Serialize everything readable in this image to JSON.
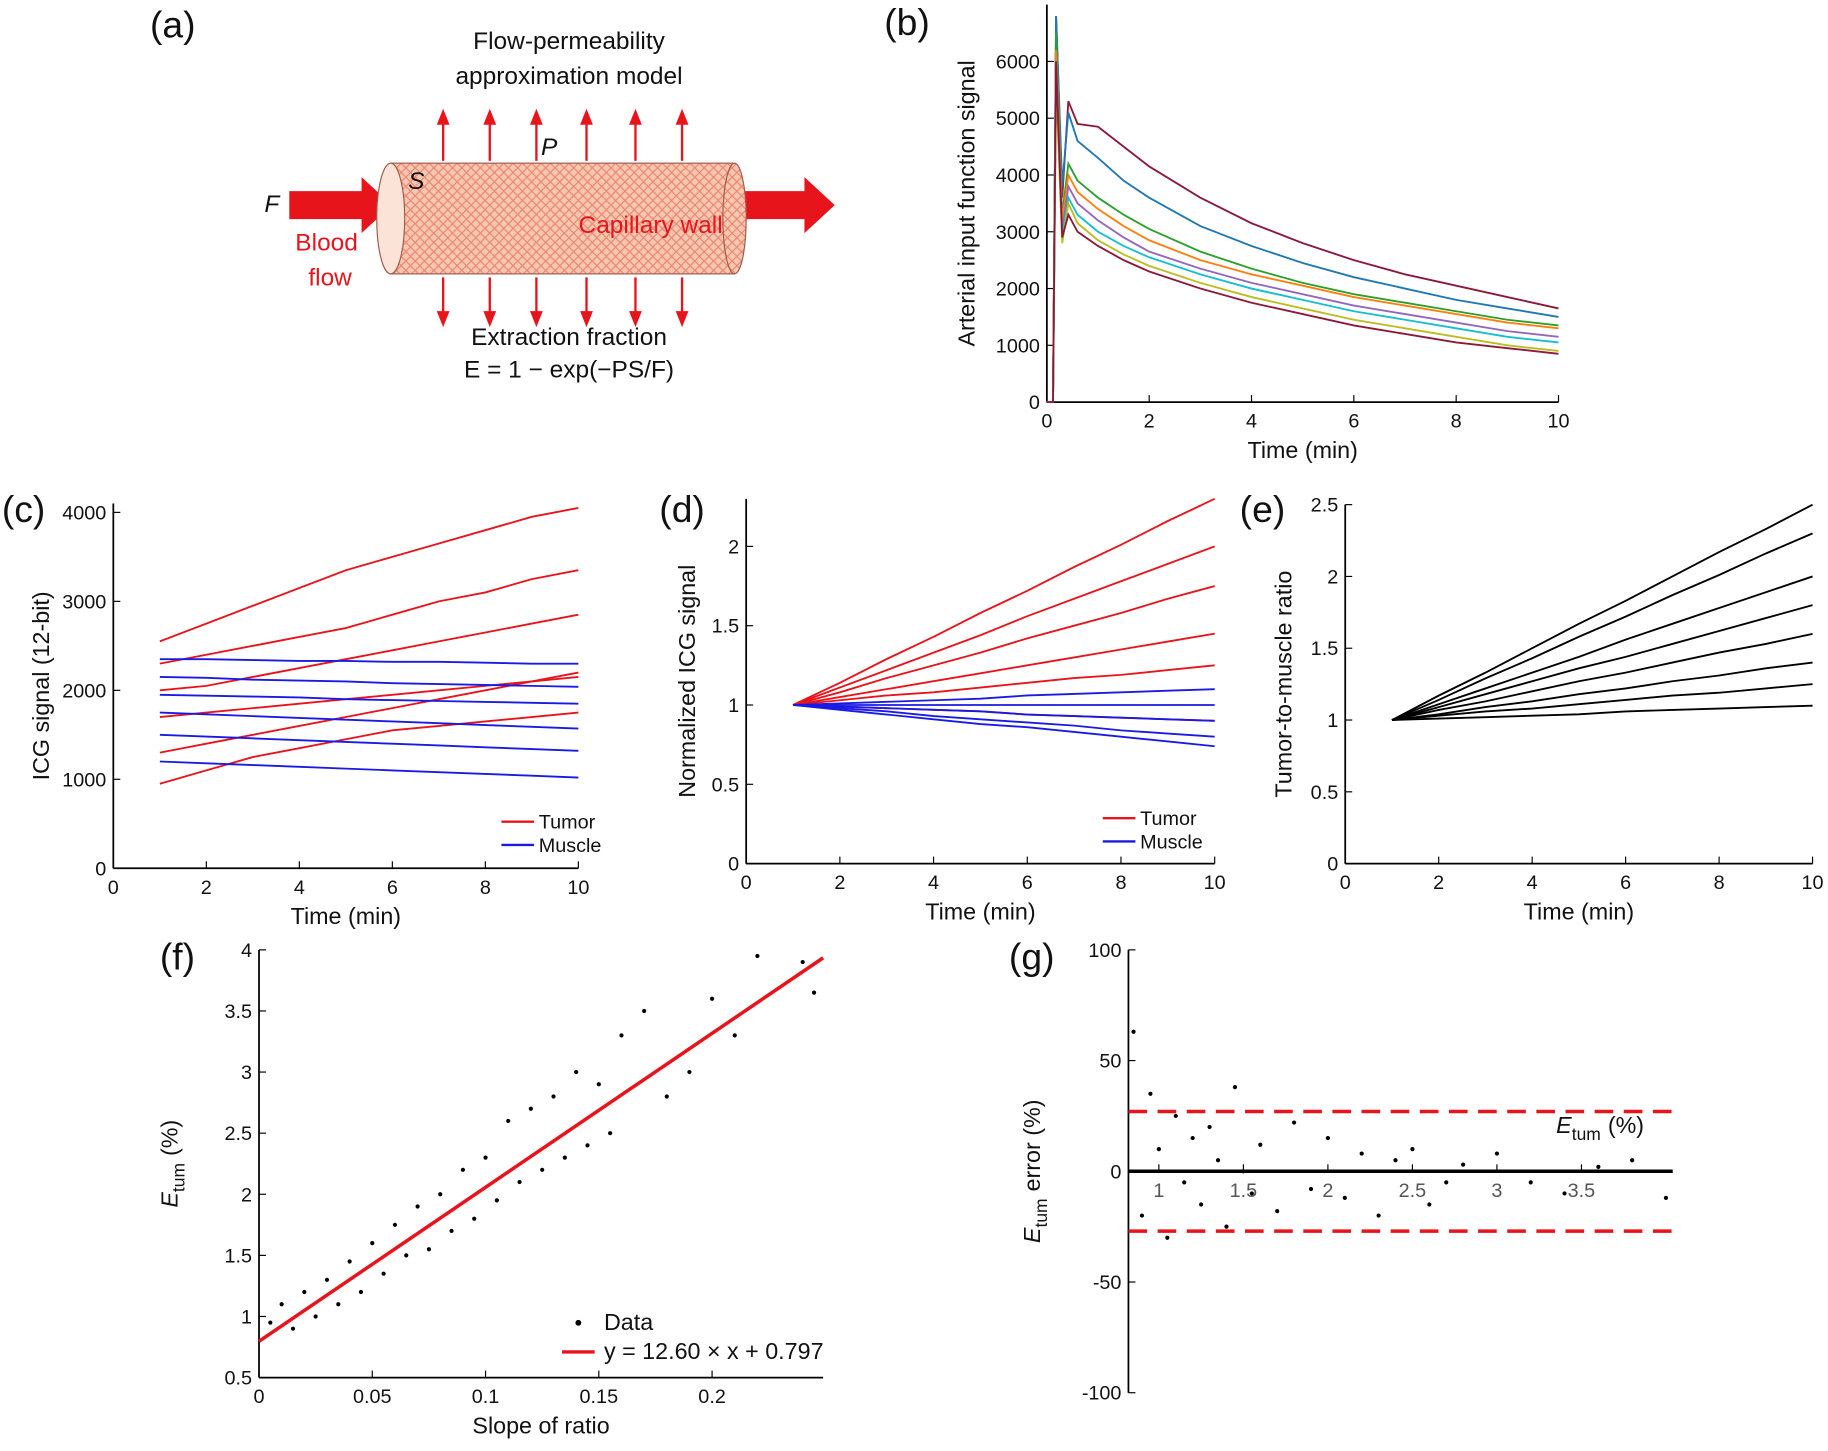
{
  "diagram": {
    "panel": "(a)",
    "title": [
      "Flow-permeability",
      "approximation model"
    ],
    "flow_symbol": "F",
    "surface_symbol": "S",
    "permeability_symbol": "P",
    "blood_flow": [
      "Blood",
      "flow"
    ],
    "wall": "Capillary wall",
    "caption": "Extraction fraction",
    "formula": "E = 1 − exp(−PS/F)"
  },
  "chart_data": [
    {
      "type": "line",
      "panel": "(b)",
      "xlabel": "Time (min)",
      "ylabel": "Arterial input function signal",
      "xlim": [
        0,
        10
      ],
      "xticks": [
        0,
        2,
        4,
        6,
        8,
        10
      ],
      "ylim": [
        0,
        7000
      ],
      "yticks": [
        0,
        1000,
        2000,
        3000,
        4000,
        5000,
        6000
      ],
      "x": [
        0,
        0.12,
        0.18,
        0.3,
        0.42,
        0.6,
        1,
        1.5,
        2,
        3,
        4,
        5,
        6,
        7,
        8,
        9,
        10
      ],
      "series": [
        {
          "color": "#8b1a3a",
          "values": [
            0,
            0,
            6800,
            3600,
            5300,
            4900,
            4850,
            4500,
            4150,
            3600,
            3150,
            2800,
            2500,
            2250,
            2050,
            1850,
            1650
          ]
        },
        {
          "color": "#1f77b4",
          "values": [
            0,
            0,
            6800,
            3800,
            5100,
            4600,
            4300,
            3900,
            3600,
            3100,
            2750,
            2450,
            2200,
            2000,
            1800,
            1650,
            1500
          ]
        },
        {
          "color": "#2ca02c",
          "values": [
            0,
            0,
            6500,
            3300,
            4200,
            3900,
            3600,
            3300,
            3050,
            2650,
            2350,
            2100,
            1900,
            1750,
            1600,
            1450,
            1350
          ]
        },
        {
          "color": "#ff7f0e",
          "values": [
            0,
            0,
            6200,
            3200,
            4000,
            3700,
            3400,
            3100,
            2850,
            2500,
            2250,
            2050,
            1850,
            1700,
            1550,
            1400,
            1300
          ]
        },
        {
          "color": "#9467bd",
          "values": [
            0,
            0,
            6000,
            3000,
            3800,
            3500,
            3200,
            2900,
            2650,
            2350,
            2100,
            1900,
            1700,
            1550,
            1400,
            1250,
            1150
          ]
        },
        {
          "color": "#17becf",
          "values": [
            0,
            0,
            5800,
            2900,
            3600,
            3300,
            3000,
            2750,
            2550,
            2250,
            2000,
            1800,
            1600,
            1450,
            1300,
            1150,
            1050
          ]
        },
        {
          "color": "#bcbd22",
          "values": [
            0,
            0,
            5600,
            2800,
            3500,
            3150,
            2850,
            2600,
            2400,
            2100,
            1850,
            1650,
            1450,
            1300,
            1150,
            1000,
            900
          ]
        },
        {
          "color": "#8b1a3a",
          "values": [
            0,
            0,
            6000,
            2900,
            3300,
            3000,
            2750,
            2500,
            2300,
            2000,
            1750,
            1550,
            1350,
            1200,
            1050,
            950,
            850
          ]
        }
      ]
    },
    {
      "type": "line",
      "panel": "(c)",
      "xlabel": "Time (min)",
      "ylabel": "ICG signal (12-bit)",
      "xlim": [
        0,
        10
      ],
      "xticks": [
        0,
        2,
        4,
        6,
        8,
        10
      ],
      "ylim": [
        0,
        4100
      ],
      "yticks": [
        0,
        1000,
        2000,
        3000,
        4000
      ],
      "x": [
        1,
        2,
        3,
        4,
        5,
        6,
        7,
        8,
        9,
        10
      ],
      "series": [
        {
          "name": "Tumor",
          "color": "#e8141c",
          "values": [
            [
              2550,
              2750,
              2950,
              3150,
              3350,
              3500,
              3650,
              3800,
              3950,
              4050
            ],
            [
              2300,
              2400,
              2500,
              2600,
              2700,
              2850,
              3000,
              3100,
              3250,
              3350
            ],
            [
              2000,
              2050,
              2150,
              2250,
              2350,
              2450,
              2550,
              2650,
              2750,
              2850
            ],
            [
              1700,
              1750,
              1800,
              1850,
              1900,
              1950,
              2000,
              2050,
              2100,
              2150
            ],
            [
              1300,
              1400,
              1500,
              1600,
              1700,
              1800,
              1900,
              2000,
              2100,
              2200
            ],
            [
              950,
              1100,
              1250,
              1350,
              1450,
              1550,
              1600,
              1650,
              1700,
              1750
            ]
          ]
        },
        {
          "name": "Muscle",
          "color": "#1a1ae6",
          "values": [
            [
              2350,
              2350,
              2340,
              2330,
              2330,
              2320,
              2320,
              2310,
              2300,
              2300
            ],
            [
              2150,
              2140,
              2120,
              2110,
              2100,
              2080,
              2070,
              2060,
              2050,
              2040
            ],
            [
              1950,
              1940,
              1930,
              1920,
              1900,
              1890,
              1880,
              1870,
              1860,
              1850
            ],
            [
              1750,
              1730,
              1710,
              1690,
              1670,
              1650,
              1630,
              1610,
              1590,
              1570
            ],
            [
              1500,
              1480,
              1460,
              1440,
              1420,
              1400,
              1380,
              1360,
              1340,
              1320
            ],
            [
              1200,
              1180,
              1160,
              1140,
              1120,
              1100,
              1080,
              1060,
              1040,
              1020
            ]
          ]
        }
      ]
    },
    {
      "type": "line",
      "panel": "(d)",
      "xlabel": "Time (min)",
      "ylabel": "Normalized ICG signal",
      "xlim": [
        0,
        10
      ],
      "xticks": [
        0,
        2,
        4,
        6,
        8,
        10
      ],
      "ylim": [
        0,
        2.3
      ],
      "yticks": [
        0,
        0.5,
        1,
        1.5,
        2
      ],
      "x": [
        1,
        2,
        3,
        4,
        5,
        6,
        7,
        8,
        9,
        10
      ],
      "series": [
        {
          "name": "Tumor",
          "color": "#e8141c",
          "values": [
            [
              1,
              1.14,
              1.29,
              1.43,
              1.58,
              1.72,
              1.87,
              2.01,
              2.16,
              2.3
            ],
            [
              1,
              1.11,
              1.22,
              1.33,
              1.44,
              1.56,
              1.67,
              1.78,
              1.89,
              2.0
            ],
            [
              1,
              1.08,
              1.17,
              1.25,
              1.33,
              1.42,
              1.5,
              1.58,
              1.67,
              1.75
            ],
            [
              1,
              1.05,
              1.1,
              1.15,
              1.2,
              1.25,
              1.3,
              1.35,
              1.4,
              1.45
            ],
            [
              1,
              1.03,
              1.06,
              1.08,
              1.11,
              1.14,
              1.17,
              1.19,
              1.22,
              1.25
            ],
            [
              1,
              0.99,
              0.98,
              0.97,
              0.96,
              0.94,
              0.93,
              0.92,
              0.91,
              0.9
            ]
          ]
        },
        {
          "name": "Muscle",
          "color": "#1a1ae6",
          "values": [
            [
              1,
              1.01,
              1.02,
              1.03,
              1.04,
              1.06,
              1.07,
              1.08,
              1.09,
              1.1
            ],
            [
              1,
              1,
              1,
              1,
              1,
              1,
              1,
              1,
              1,
              1
            ],
            [
              1,
              0.99,
              0.98,
              0.97,
              0.96,
              0.94,
              0.93,
              0.92,
              0.91,
              0.9
            ],
            [
              1,
              0.98,
              0.96,
              0.93,
              0.91,
              0.89,
              0.87,
              0.84,
              0.82,
              0.8
            ],
            [
              1,
              0.97,
              0.94,
              0.91,
              0.88,
              0.86,
              0.83,
              0.8,
              0.77,
              0.74
            ]
          ]
        }
      ]
    },
    {
      "type": "line",
      "panel": "(e)",
      "xlabel": "Time (min)",
      "ylabel": "Tumor-to-muscle ratio",
      "xlim": [
        0,
        10
      ],
      "xticks": [
        0,
        2,
        4,
        6,
        8,
        10
      ],
      "ylim": [
        0,
        2.5
      ],
      "yticks": [
        0,
        0.5,
        1,
        1.5,
        2,
        2.5
      ],
      "x": [
        1,
        2,
        3,
        4,
        5,
        6,
        7,
        8,
        9,
        10
      ],
      "series": [
        {
          "color": "#000000",
          "values": [
            [
              1,
              1.17,
              1.33,
              1.5,
              1.67,
              1.83,
              2.0,
              2.17,
              2.33,
              2.5
            ],
            [
              1,
              1.14,
              1.29,
              1.43,
              1.58,
              1.72,
              1.87,
              2.01,
              2.16,
              2.3
            ],
            [
              1,
              1.11,
              1.22,
              1.33,
              1.44,
              1.56,
              1.67,
              1.78,
              1.89,
              2.0
            ],
            [
              1,
              1.09,
              1.18,
              1.27,
              1.36,
              1.44,
              1.53,
              1.62,
              1.71,
              1.8
            ],
            [
              1,
              1.07,
              1.13,
              1.2,
              1.27,
              1.33,
              1.4,
              1.47,
              1.53,
              1.6
            ],
            [
              1,
              1.04,
              1.09,
              1.13,
              1.18,
              1.22,
              1.27,
              1.31,
              1.36,
              1.4
            ],
            [
              1,
              1.03,
              1.06,
              1.08,
              1.11,
              1.14,
              1.17,
              1.19,
              1.22,
              1.25
            ],
            [
              1,
              1.01,
              1.02,
              1.03,
              1.04,
              1.06,
              1.07,
              1.08,
              1.09,
              1.1
            ]
          ]
        }
      ]
    },
    {
      "type": "scatter",
      "panel": "(f)",
      "xlabel": "Slope of ratio",
      "ylabel": {
        "main": "E",
        "sub": "tum",
        "rest": "(%)"
      },
      "xlim": [
        0,
        0.249
      ],
      "xticks": [
        0,
        0.05,
        0.1,
        0.15,
        0.2
      ],
      "ylim": [
        0.5,
        4
      ],
      "yticks": [
        0.5,
        1,
        1.5,
        2,
        2.5,
        3,
        3.5,
        4
      ],
      "series": [
        {
          "name": "Data",
          "color": "#000000",
          "x": [
            0.005,
            0.01,
            0.015,
            0.02,
            0.025,
            0.03,
            0.035,
            0.04,
            0.045,
            0.05,
            0.055,
            0.06,
            0.065,
            0.07,
            0.075,
            0.08,
            0.085,
            0.09,
            0.095,
            0.1,
            0.105,
            0.11,
            0.115,
            0.12,
            0.125,
            0.13,
            0.135,
            0.14,
            0.145,
            0.15,
            0.155,
            0.16,
            0.17,
            0.18,
            0.19,
            0.2,
            0.21,
            0.22,
            0.24,
            0.245
          ],
          "values": [
            0.95,
            1.1,
            0.9,
            1.2,
            1.0,
            1.3,
            1.1,
            1.45,
            1.2,
            1.6,
            1.35,
            1.75,
            1.5,
            1.9,
            1.55,
            2.0,
            1.7,
            2.2,
            1.8,
            2.3,
            1.95,
            2.6,
            2.1,
            2.7,
            2.2,
            2.8,
            2.3,
            3.0,
            2.4,
            2.9,
            2.5,
            3.3,
            3.5,
            2.8,
            3.0,
            3.6,
            3.3,
            3.95,
            3.9,
            3.65
          ]
        }
      ],
      "fit": {
        "name": "y = 12.60 × x + 0.797",
        "color": "#e8141c",
        "slope": 12.6,
        "intercept": 0.797
      }
    },
    {
      "type": "scatter",
      "panel": "(g)",
      "xlabel": {
        "main": "E",
        "sub": "tum",
        "rest": "(%)"
      },
      "ylabel": {
        "main": "E",
        "sub": "tum",
        "rest": "error (%)"
      },
      "xaxis_position": "zero",
      "xlim": [
        0.82,
        4.04
      ],
      "xticks": [
        1,
        1.5,
        2,
        2.5,
        3,
        3.5
      ],
      "ylim": [
        -100,
        100
      ],
      "yticks": [
        -100,
        -50,
        0,
        50,
        100
      ],
      "series": [
        {
          "color": "#000000",
          "x": [
            0.85,
            0.9,
            0.95,
            1.0,
            1.05,
            1.1,
            1.15,
            1.2,
            1.25,
            1.3,
            1.35,
            1.4,
            1.45,
            1.5,
            1.55,
            1.6,
            1.7,
            1.8,
            1.9,
            2.0,
            2.1,
            2.2,
            2.3,
            2.4,
            2.5,
            2.6,
            2.7,
            2.8,
            3.0,
            3.2,
            3.4,
            3.6,
            3.8,
            4.0
          ],
          "values": [
            63,
            -20,
            35,
            10,
            -30,
            25,
            -5,
            15,
            -15,
            20,
            5,
            -25,
            38,
            0,
            -10,
            12,
            -18,
            22,
            -8,
            15,
            -12,
            8,
            -20,
            5,
            10,
            -15,
            -5,
            3,
            8,
            -5,
            -10,
            2,
            5,
            -12
          ]
        }
      ],
      "limits": {
        "color": "#e8141c",
        "values": [
          27,
          -27
        ]
      }
    }
  ]
}
